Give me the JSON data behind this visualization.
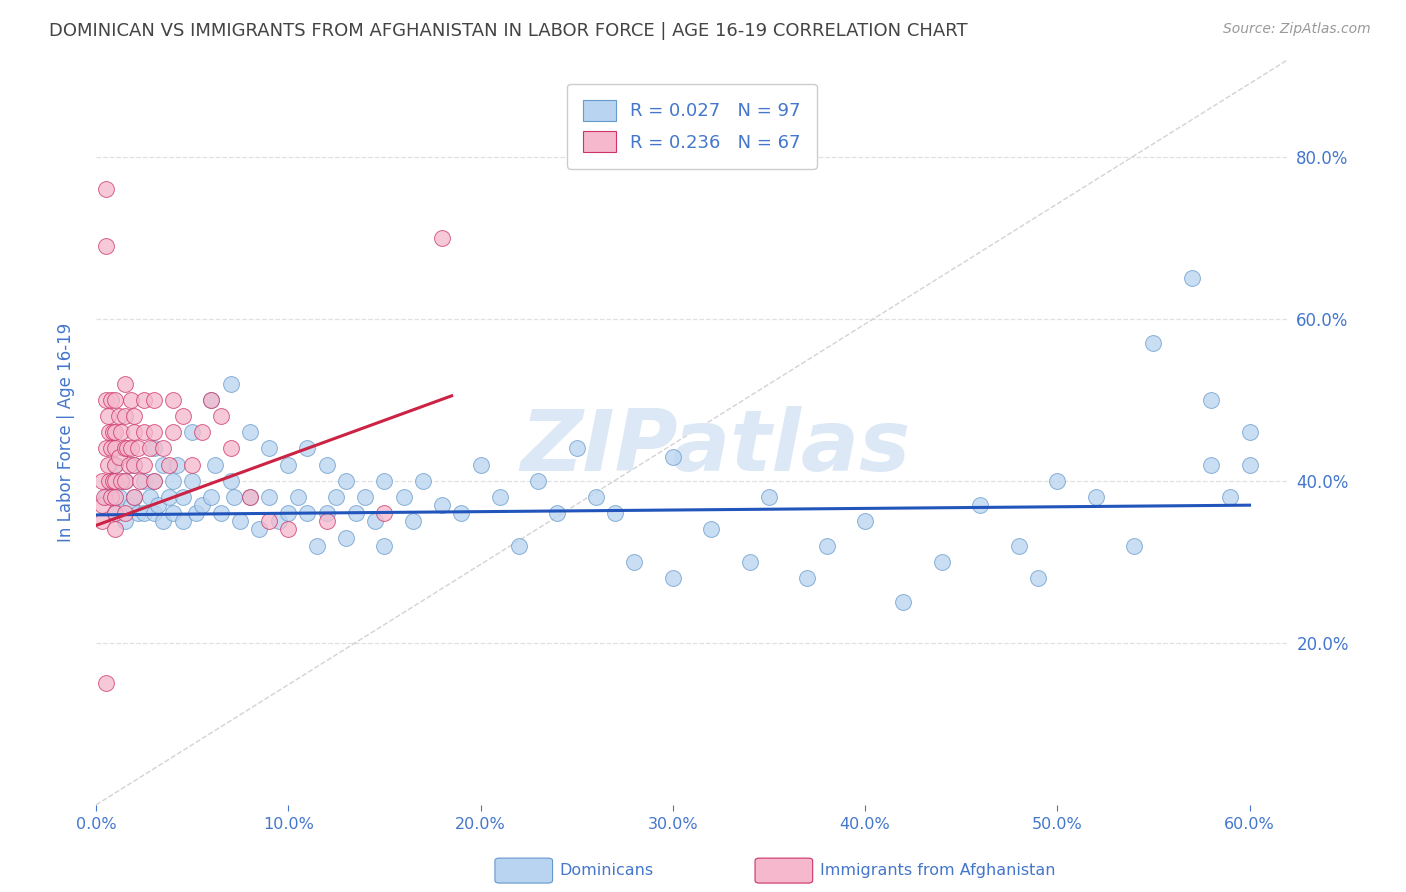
{
  "title": "DOMINICAN VS IMMIGRANTS FROM AFGHANISTAN IN LABOR FORCE | AGE 16-19 CORRELATION CHART",
  "source": "Source: ZipAtlas.com",
  "ylabel": "In Labor Force | Age 16-19",
  "xlim": [
    0.0,
    0.62
  ],
  "ylim": [
    0.0,
    0.92
  ],
  "ytick_labels": [
    "20.0%",
    "40.0%",
    "60.0%",
    "80.0%"
  ],
  "ytick_vals": [
    0.2,
    0.4,
    0.6,
    0.8
  ],
  "xtick_labels": [
    "0.0%",
    "10.0%",
    "20.0%",
    "30.0%",
    "40.0%",
    "50.0%",
    "60.0%"
  ],
  "xtick_vals": [
    0.0,
    0.1,
    0.2,
    0.3,
    0.4,
    0.5,
    0.6
  ],
  "legend_entries": [
    {
      "label": "R = 0.027   N = 97",
      "color": "#b8d4f0"
    },
    {
      "label": "R = 0.236   N = 67",
      "color": "#f5b8cc"
    }
  ],
  "dominicans": {
    "color": "#b8d4f0",
    "edge_color": "#6699cc",
    "trend_color": "#2255bb",
    "trend_x": [
      0.0,
      0.6
    ],
    "trend_y": [
      0.358,
      0.37
    ],
    "x": [
      0.005,
      0.008,
      0.01,
      0.01,
      0.012,
      0.015,
      0.015,
      0.018,
      0.02,
      0.02,
      0.022,
      0.025,
      0.025,
      0.028,
      0.03,
      0.03,
      0.03,
      0.032,
      0.035,
      0.035,
      0.038,
      0.04,
      0.04,
      0.042,
      0.045,
      0.045,
      0.05,
      0.05,
      0.052,
      0.055,
      0.06,
      0.06,
      0.062,
      0.065,
      0.07,
      0.07,
      0.072,
      0.075,
      0.08,
      0.08,
      0.085,
      0.09,
      0.09,
      0.095,
      0.1,
      0.1,
      0.105,
      0.11,
      0.11,
      0.115,
      0.12,
      0.12,
      0.125,
      0.13,
      0.13,
      0.135,
      0.14,
      0.145,
      0.15,
      0.15,
      0.16,
      0.165,
      0.17,
      0.18,
      0.19,
      0.2,
      0.21,
      0.22,
      0.23,
      0.24,
      0.25,
      0.26,
      0.27,
      0.28,
      0.3,
      0.3,
      0.32,
      0.34,
      0.35,
      0.37,
      0.38,
      0.4,
      0.42,
      0.44,
      0.46,
      0.48,
      0.49,
      0.5,
      0.52,
      0.54,
      0.55,
      0.57,
      0.58,
      0.58,
      0.59,
      0.6,
      0.6
    ],
    "y": [
      0.38,
      0.4,
      0.36,
      0.42,
      0.38,
      0.4,
      0.35,
      0.37,
      0.42,
      0.38,
      0.36,
      0.4,
      0.36,
      0.38,
      0.44,
      0.4,
      0.36,
      0.37,
      0.42,
      0.35,
      0.38,
      0.4,
      0.36,
      0.42,
      0.38,
      0.35,
      0.46,
      0.4,
      0.36,
      0.37,
      0.5,
      0.38,
      0.42,
      0.36,
      0.52,
      0.4,
      0.38,
      0.35,
      0.46,
      0.38,
      0.34,
      0.44,
      0.38,
      0.35,
      0.42,
      0.36,
      0.38,
      0.44,
      0.36,
      0.32,
      0.42,
      0.36,
      0.38,
      0.4,
      0.33,
      0.36,
      0.38,
      0.35,
      0.4,
      0.32,
      0.38,
      0.35,
      0.4,
      0.37,
      0.36,
      0.42,
      0.38,
      0.32,
      0.4,
      0.36,
      0.44,
      0.38,
      0.36,
      0.3,
      0.43,
      0.28,
      0.34,
      0.3,
      0.38,
      0.28,
      0.32,
      0.35,
      0.25,
      0.3,
      0.37,
      0.32,
      0.28,
      0.4,
      0.38,
      0.32,
      0.57,
      0.65,
      0.42,
      0.5,
      0.38,
      0.42,
      0.46
    ]
  },
  "afghanistan": {
    "color": "#f5b8cc",
    "edge_color": "#cc3366",
    "trend_color": "#cc2244",
    "trend_x": [
      0.0,
      0.185
    ],
    "trend_y": [
      0.345,
      0.505
    ],
    "x": [
      0.003,
      0.003,
      0.003,
      0.004,
      0.005,
      0.005,
      0.005,
      0.005,
      0.006,
      0.006,
      0.007,
      0.007,
      0.008,
      0.008,
      0.008,
      0.009,
      0.009,
      0.01,
      0.01,
      0.01,
      0.01,
      0.01,
      0.01,
      0.01,
      0.01,
      0.012,
      0.012,
      0.013,
      0.013,
      0.015,
      0.015,
      0.015,
      0.015,
      0.015,
      0.016,
      0.017,
      0.018,
      0.018,
      0.02,
      0.02,
      0.02,
      0.02,
      0.022,
      0.023,
      0.025,
      0.025,
      0.025,
      0.028,
      0.03,
      0.03,
      0.03,
      0.035,
      0.038,
      0.04,
      0.04,
      0.045,
      0.05,
      0.055,
      0.06,
      0.065,
      0.07,
      0.08,
      0.09,
      0.1,
      0.12,
      0.15,
      0.18
    ],
    "y": [
      0.4,
      0.37,
      0.35,
      0.38,
      0.76,
      0.69,
      0.5,
      0.44,
      0.48,
      0.42,
      0.46,
      0.4,
      0.5,
      0.44,
      0.38,
      0.46,
      0.4,
      0.5,
      0.46,
      0.44,
      0.42,
      0.4,
      0.38,
      0.36,
      0.34,
      0.48,
      0.43,
      0.46,
      0.4,
      0.52,
      0.48,
      0.44,
      0.4,
      0.36,
      0.44,
      0.42,
      0.5,
      0.44,
      0.48,
      0.46,
      0.42,
      0.38,
      0.44,
      0.4,
      0.5,
      0.46,
      0.42,
      0.44,
      0.5,
      0.46,
      0.4,
      0.44,
      0.42,
      0.5,
      0.46,
      0.48,
      0.42,
      0.46,
      0.5,
      0.48,
      0.44,
      0.38,
      0.35,
      0.34,
      0.35,
      0.36,
      0.7
    ],
    "outlier_x": [
      0.005
    ],
    "outlier_y": [
      0.15
    ]
  },
  "diagonal_color": "#c8c8c8",
  "background_color": "#ffffff",
  "grid_color": "#e0e0e0",
  "watermark": "ZIPatlas",
  "watermark_color": "#dce8f5",
  "title_color": "#444444",
  "axis_color": "#4477cc",
  "tick_label_color": "#4477cc"
}
